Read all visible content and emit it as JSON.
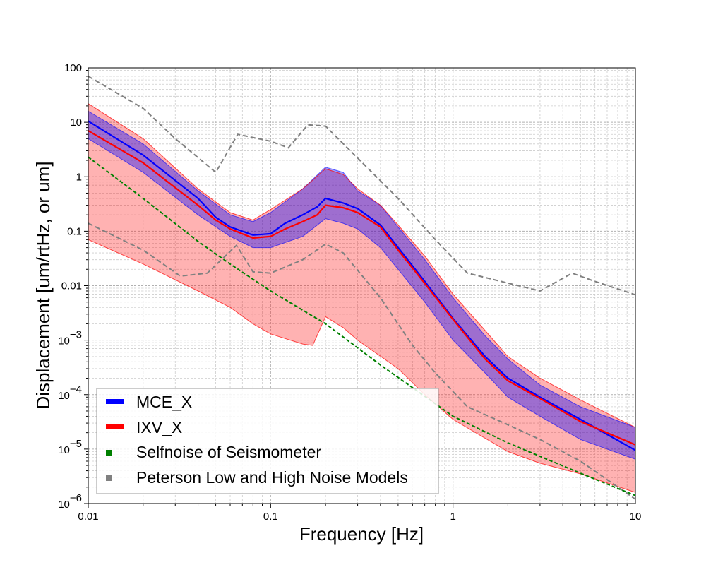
{
  "chart_data": {
    "type": "line",
    "xlabel": "Frequency [Hz]",
    "ylabel": "Displacement [um/rtHz, or um]",
    "xscale": "log",
    "yscale": "log",
    "xlim": [
      0.01,
      10
    ],
    "ylim": [
      1e-06,
      100
    ],
    "grid": true,
    "legend_position": "lower-left",
    "x_ticks": [
      {
        "value": 0.01,
        "label": "0.01"
      },
      {
        "value": 0.1,
        "label": "0.1"
      },
      {
        "value": 1,
        "label": "1"
      },
      {
        "value": 10,
        "label": "10"
      }
    ],
    "y_ticks": [
      {
        "value": 100,
        "label": "100",
        "base": "",
        "exp": ""
      },
      {
        "value": 10,
        "label": "10",
        "base": "",
        "exp": ""
      },
      {
        "value": 1,
        "label": "1",
        "base": "",
        "exp": ""
      },
      {
        "value": 0.1,
        "label": "0.1",
        "base": "",
        "exp": ""
      },
      {
        "value": 0.01,
        "label": "0.01",
        "base": "",
        "exp": ""
      },
      {
        "value": 0.001,
        "label": "",
        "base": "10",
        "exp": "−3"
      },
      {
        "value": 0.0001,
        "label": "",
        "base": "10",
        "exp": "−4"
      },
      {
        "value": 1e-05,
        "label": "",
        "base": "10",
        "exp": "−5"
      },
      {
        "value": 1e-06,
        "label": "",
        "base": "10",
        "exp": "−6"
      }
    ],
    "series": [
      {
        "name": "MCE_X",
        "color": "#0000ff",
        "median": [
          [
            0.01,
            10.5
          ],
          [
            0.02,
            2.5
          ],
          [
            0.04,
            0.4
          ],
          [
            0.05,
            0.18
          ],
          [
            0.06,
            0.12
          ],
          [
            0.08,
            0.085
          ],
          [
            0.1,
            0.09
          ],
          [
            0.12,
            0.14
          ],
          [
            0.15,
            0.2
          ],
          [
            0.18,
            0.28
          ],
          [
            0.2,
            0.4
          ],
          [
            0.25,
            0.33
          ],
          [
            0.3,
            0.26
          ],
          [
            0.4,
            0.13
          ],
          [
            0.5,
            0.05
          ],
          [
            0.7,
            0.012
          ],
          [
            1,
            0.0025
          ],
          [
            1.5,
            0.0005
          ],
          [
            2,
            0.0002
          ],
          [
            3,
            9e-05
          ],
          [
            5,
            3.5e-05
          ],
          [
            10,
            9.5e-06
          ]
        ],
        "upper": [
          [
            0.01,
            16
          ],
          [
            0.02,
            4
          ],
          [
            0.04,
            0.55
          ],
          [
            0.06,
            0.2
          ],
          [
            0.08,
            0.15
          ],
          [
            0.1,
            0.22
          ],
          [
            0.15,
            0.6
          ],
          [
            0.2,
            1.5
          ],
          [
            0.25,
            1.2
          ],
          [
            0.3,
            0.55
          ],
          [
            0.4,
            0.3
          ],
          [
            0.5,
            0.12
          ],
          [
            0.7,
            0.03
          ],
          [
            1,
            0.006
          ],
          [
            1.5,
            0.0012
          ],
          [
            2,
            0.00045
          ],
          [
            3,
            0.00015
          ],
          [
            5,
            6e-05
          ],
          [
            10,
            2.5e-05
          ]
        ],
        "lower": [
          [
            0.01,
            5
          ],
          [
            0.02,
            1.2
          ],
          [
            0.04,
            0.2
          ],
          [
            0.06,
            0.08
          ],
          [
            0.08,
            0.05
          ],
          [
            0.1,
            0.05
          ],
          [
            0.15,
            0.08
          ],
          [
            0.2,
            0.17
          ],
          [
            0.25,
            0.14
          ],
          [
            0.3,
            0.11
          ],
          [
            0.4,
            0.05
          ],
          [
            0.5,
            0.02
          ],
          [
            0.7,
            0.005
          ],
          [
            1,
            0.001
          ],
          [
            1.5,
            0.00025
          ],
          [
            2,
            9e-05
          ],
          [
            3,
            4e-05
          ],
          [
            5,
            1.5e-05
          ],
          [
            10,
            6.5e-06
          ]
        ]
      },
      {
        "name": "IXV_X",
        "color": "#ff0000",
        "median": [
          [
            0.01,
            7
          ],
          [
            0.02,
            1.8
          ],
          [
            0.04,
            0.3
          ],
          [
            0.05,
            0.16
          ],
          [
            0.06,
            0.11
          ],
          [
            0.08,
            0.075
          ],
          [
            0.1,
            0.08
          ],
          [
            0.12,
            0.11
          ],
          [
            0.15,
            0.15
          ],
          [
            0.18,
            0.2
          ],
          [
            0.2,
            0.3
          ],
          [
            0.25,
            0.27
          ],
          [
            0.3,
            0.22
          ],
          [
            0.4,
            0.12
          ],
          [
            0.5,
            0.045
          ],
          [
            0.7,
            0.011
          ],
          [
            1,
            0.0024
          ],
          [
            1.5,
            0.00045
          ],
          [
            2,
            0.00018
          ],
          [
            3,
            8.5e-05
          ],
          [
            5,
            3.2e-05
          ],
          [
            10,
            1.2e-05
          ]
        ],
        "upper": [
          [
            0.01,
            22
          ],
          [
            0.02,
            5
          ],
          [
            0.04,
            0.6
          ],
          [
            0.06,
            0.22
          ],
          [
            0.08,
            0.16
          ],
          [
            0.1,
            0.25
          ],
          [
            0.15,
            0.6
          ],
          [
            0.2,
            1.4
          ],
          [
            0.25,
            1.1
          ],
          [
            0.3,
            0.6
          ],
          [
            0.4,
            0.3
          ],
          [
            0.5,
            0.13
          ],
          [
            0.7,
            0.035
          ],
          [
            1,
            0.007
          ],
          [
            1.5,
            0.0015
          ],
          [
            2,
            0.0005
          ],
          [
            3,
            0.0002
          ],
          [
            5,
            8e-05
          ],
          [
            10,
            2.5e-05
          ]
        ],
        "lower": [
          [
            0.01,
            0.07
          ],
          [
            0.02,
            0.025
          ],
          [
            0.04,
            0.008
          ],
          [
            0.06,
            0.004
          ],
          [
            0.08,
            0.002
          ],
          [
            0.1,
            0.0013
          ],
          [
            0.15,
            0.00085
          ],
          [
            0.17,
            0.0008
          ],
          [
            0.2,
            0.0027
          ],
          [
            0.25,
            0.0017
          ],
          [
            0.3,
            0.001
          ],
          [
            0.5,
            0.0003
          ],
          [
            0.7,
            0.0001
          ],
          [
            1,
            3.5e-05
          ],
          [
            2,
            9e-06
          ],
          [
            3,
            5.5e-06
          ],
          [
            5,
            3.5e-06
          ],
          [
            10,
            1.6e-06
          ]
        ]
      },
      {
        "name": "Selfnoise of Seismometer",
        "color": "#008000",
        "points": [
          [
            0.01,
            2.3
          ],
          [
            0.02,
            0.4
          ],
          [
            0.04,
            0.065
          ],
          [
            0.06,
            0.025
          ],
          [
            0.1,
            0.008
          ],
          [
            0.2,
            0.002
          ],
          [
            0.4,
            0.00035
          ],
          [
            1,
            4e-05
          ],
          [
            2,
            1.3e-05
          ],
          [
            5,
            3.6e-06
          ],
          [
            10,
            1.4e-06
          ]
        ]
      },
      {
        "name": "Peterson Low and High Noise Models",
        "color": "#808080",
        "high": [
          [
            0.01,
            70
          ],
          [
            0.02,
            18
          ],
          [
            0.03,
            5
          ],
          [
            0.05,
            1.2
          ],
          [
            0.066,
            6
          ],
          [
            0.1,
            4.5
          ],
          [
            0.125,
            3.4
          ],
          [
            0.16,
            9
          ],
          [
            0.2,
            8.5
          ],
          [
            0.3,
            2.2
          ],
          [
            0.5,
            0.4
          ],
          [
            0.8,
            0.07
          ],
          [
            1.2,
            0.017
          ],
          [
            3,
            0.008
          ],
          [
            4.5,
            0.017
          ],
          [
            6,
            0.012
          ],
          [
            10,
            0.0068
          ]
        ],
        "low": [
          [
            0.01,
            0.14
          ],
          [
            0.02,
            0.045
          ],
          [
            0.032,
            0.015
          ],
          [
            0.045,
            0.017
          ],
          [
            0.065,
            0.055
          ],
          [
            0.08,
            0.018
          ],
          [
            0.1,
            0.017
          ],
          [
            0.15,
            0.03
          ],
          [
            0.2,
            0.058
          ],
          [
            0.25,
            0.04
          ],
          [
            0.4,
            0.006
          ],
          [
            0.6,
            0.0008
          ],
          [
            0.8,
            0.00025
          ],
          [
            1.2,
            6e-05
          ],
          [
            2,
            2.8e-05
          ],
          [
            3,
            1.5e-05
          ],
          [
            5,
            6e-06
          ],
          [
            10,
            1.2e-06
          ]
        ]
      }
    ]
  }
}
